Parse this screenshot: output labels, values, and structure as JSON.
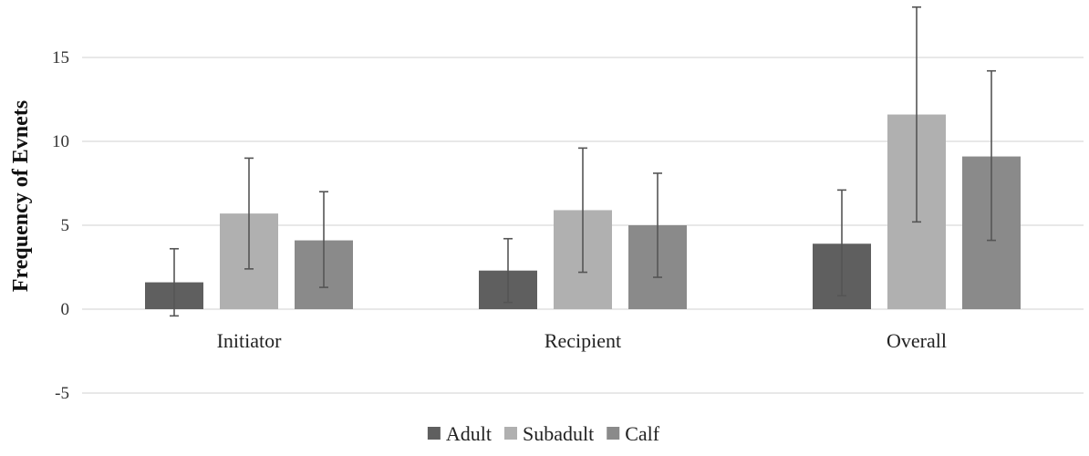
{
  "chart_data": {
    "type": "bar",
    "title": "",
    "xlabel": "",
    "ylabel": "Frequency of Evnets",
    "ylim": [
      -5,
      18
    ],
    "yticks": [
      15,
      10,
      5,
      0,
      -5
    ],
    "grid": true,
    "legend_position": "bottom",
    "categories": [
      "Initiator",
      "Recipient",
      "Overall"
    ],
    "series": [
      {
        "name": "Adult",
        "color": "#5f5f5f",
        "values": [
          1.6,
          2.3,
          3.9
        ],
        "error_low": [
          -0.4,
          0.4,
          0.8
        ],
        "error_high": [
          3.6,
          4.2,
          7.1
        ]
      },
      {
        "name": "Subadult",
        "color": "#b0b0b0",
        "values": [
          5.7,
          5.9,
          11.6
        ],
        "error_low": [
          2.4,
          2.2,
          5.2
        ],
        "error_high": [
          9.0,
          9.6,
          18.0
        ]
      },
      {
        "name": "Calf",
        "color": "#8a8a8a",
        "values": [
          4.1,
          5.0,
          9.1
        ],
        "error_low": [
          1.3,
          1.9,
          4.1
        ],
        "error_high": [
          7.0,
          8.1,
          14.2
        ]
      }
    ]
  }
}
